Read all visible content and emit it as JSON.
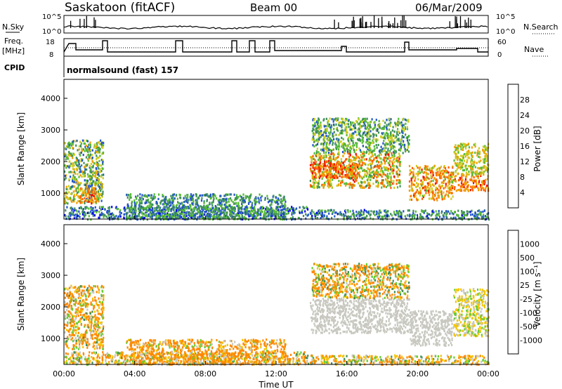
{
  "header": {
    "station": "Saskatoon (fitACF)",
    "beam": "Beam 00",
    "date": "06/Mar/2009"
  },
  "left_labels": {
    "nsky": "N.Sky",
    "freq_line1": "Freq.",
    "freq_line2": "[MHz]",
    "cpid": "CPID"
  },
  "right_labels": {
    "nsearch": "N.Search",
    "nave": "Nave"
  },
  "cpid_text": "normalsound (fast) 157",
  "noise_ticks": [
    "10^5",
    "10^0"
  ],
  "freq_ticks": [
    "18",
    "8"
  ],
  "nave_ticks": [
    "60",
    "0"
  ],
  "x_ticks": [
    "00:00",
    "04:00",
    "08:00",
    "12:00",
    "16:00",
    "20:00",
    "00:00"
  ],
  "x_label": "Time UT",
  "range_ticks": [
    "4000",
    "3000",
    "2000",
    "1000"
  ],
  "power_scale": {
    "label": "Power [dB]",
    "ticks": [
      "28",
      "24",
      "20",
      "16",
      "12",
      "8",
      "4"
    ],
    "colors": [
      "#0000ee",
      "#2255cc",
      "#3f8f5a",
      "#55bb33",
      "#cccc22",
      "#f0a000",
      "#ff6000",
      "#ee1100"
    ]
  },
  "velocity_scale": {
    "label": "Velocity [m s⁻¹]",
    "ticks": [
      "1000",
      "500",
      "100",
      "25",
      "-25",
      "-100",
      "-500",
      "-1000"
    ],
    "colors": [
      "#1a3aaa",
      "#2c6ccf",
      "#3f8f5a",
      "#66cc33",
      "#c8c8c0",
      "#f5c400",
      "#ff8800",
      "#ff4400",
      "#ee0000"
    ]
  },
  "chart_data": [
    {
      "type": "heatmap",
      "name": "power",
      "ylabel": "Slant Range [km]",
      "xlabel": "",
      "xlim_hours": [
        0,
        24
      ],
      "ylim_km": [
        180,
        4600
      ],
      "colorbar": "Power [dB]",
      "colorbar_range": [
        0,
        32
      ],
      "echo_regions": [
        {
          "t": [
            0.0,
            2.2
          ],
          "r": [
            700,
            2700
          ],
          "v": 14,
          "sp": 9
        },
        {
          "t": [
            0.8,
            1.8
          ],
          "r": [
            700,
            1200
          ],
          "v": 24,
          "sp": 5
        },
        {
          "t": [
            0.0,
            13.8
          ],
          "r": [
            200,
            600
          ],
          "v": 8,
          "sp": 7
        },
        {
          "t": [
            3.5,
            12.5
          ],
          "r": [
            200,
            1000
          ],
          "v": 10,
          "sp": 6
        },
        {
          "t": [
            13.9,
            19.0
          ],
          "r": [
            1200,
            2300
          ],
          "v": 20,
          "sp": 9
        },
        {
          "t": [
            13.9,
            16.5
          ],
          "r": [
            1500,
            2000
          ],
          "v": 26,
          "sp": 5
        },
        {
          "t": [
            14.0,
            19.5
          ],
          "r": [
            2300,
            3400
          ],
          "v": 13,
          "sp": 7
        },
        {
          "t": [
            19.5,
            22.0
          ],
          "r": [
            800,
            1900
          ],
          "v": 22,
          "sp": 7
        },
        {
          "t": [
            22.0,
            24.0
          ],
          "r": [
            1100,
            1600
          ],
          "v": 25,
          "sp": 5
        },
        {
          "t": [
            22.0,
            24.0
          ],
          "r": [
            1600,
            2600
          ],
          "v": 18,
          "sp": 6
        },
        {
          "t": [
            13.9,
            24.0
          ],
          "r": [
            200,
            500
          ],
          "v": 9,
          "sp": 6
        }
      ]
    },
    {
      "type": "heatmap",
      "name": "velocity",
      "ylabel": "Slant Range [km]",
      "xlabel": "Time UT",
      "xlim_hours": [
        0,
        24
      ],
      "ylim_km": [
        180,
        4600
      ],
      "colorbar": "Velocity [m s⁻¹]",
      "colorbar_range": [
        -1000,
        1000
      ],
      "echo_regions": [
        {
          "t": [
            0.0,
            2.2
          ],
          "r": [
            700,
            2700
          ],
          "v": -120,
          "sp": 250
        },
        {
          "t": [
            0.0,
            13.8
          ],
          "r": [
            200,
            600
          ],
          "v": -60,
          "sp": 200
        },
        {
          "t": [
            3.5,
            12.5
          ],
          "r": [
            200,
            1000
          ],
          "v": -150,
          "sp": 200
        },
        {
          "t": [
            13.9,
            19.5
          ],
          "r": [
            1200,
            2300
          ],
          "v": 0,
          "sp": 15
        },
        {
          "t": [
            14.0,
            19.5
          ],
          "r": [
            2300,
            3400
          ],
          "v": -80,
          "sp": 250
        },
        {
          "t": [
            19.5,
            22.0
          ],
          "r": [
            800,
            1900
          ],
          "v": 0,
          "sp": 15
        },
        {
          "t": [
            22.0,
            24.0
          ],
          "r": [
            1100,
            2600
          ],
          "v": -20,
          "sp": 80
        },
        {
          "t": [
            13.9,
            24.0
          ],
          "r": [
            200,
            500
          ],
          "v": -60,
          "sp": 200
        }
      ]
    }
  ]
}
